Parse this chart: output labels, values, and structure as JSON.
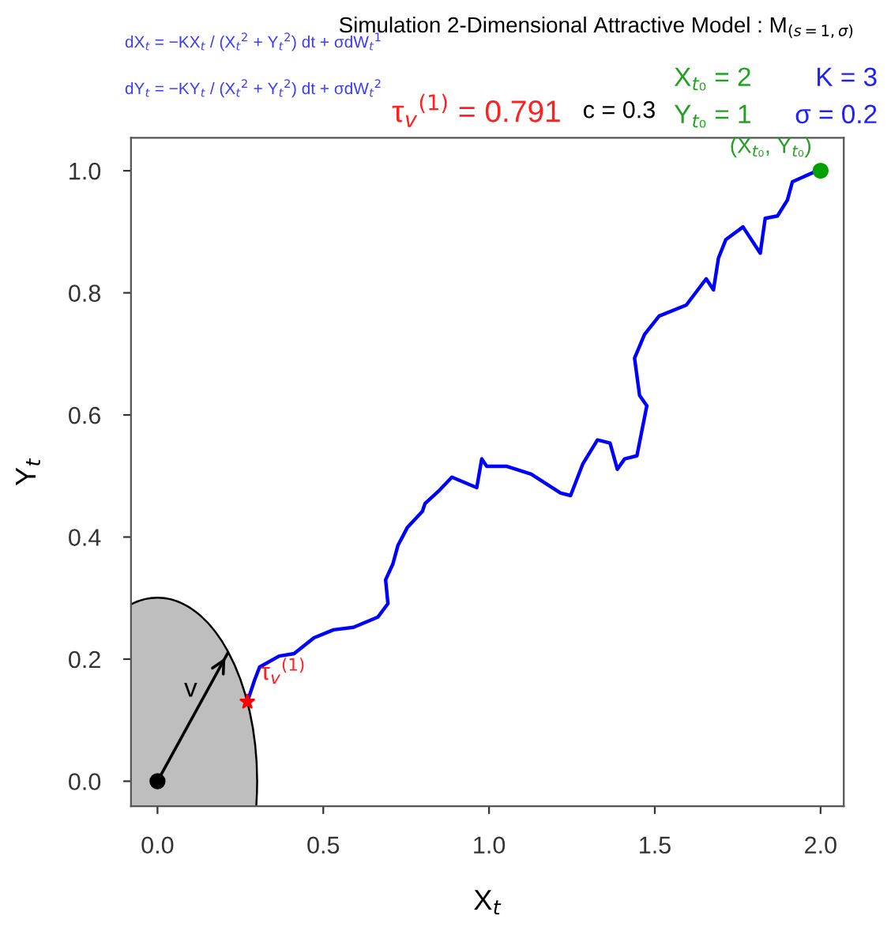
{
  "chart_data": {
    "type": "line",
    "title": "Simulation 2-Dimensional Attractive Model : M$_{(s=1,σ)}$",
    "xlabel": "X$_{t}$",
    "ylabel": "Y$_{t}$",
    "annotations": [
      "dX$_{t}$ = −KX$_{t}$ / (X$_{t}$$^{2}$ + Y$_{t}$$^{2}$) dt + σdW$_{t}$$^{1}$",
      "dY$_{t}$ = −KY$_{t}$ / (X$_{t}$$^{2}$ + Y$_{t}$$^{2}$) dt + σdW$_{t}$$^{2}$",
      "τ$_{v}$$^{(1)}$ = 0.791",
      "c = 0.3",
      "X$_{t₀}$ = 2",
      "Y$_{t₀}$ = 1",
      "K = 3",
      "σ = 0.2",
      {
        "text": "(X$_{t₀}$, Y$_{t₀}$)",
        "x": 2,
        "y": 1
      },
      "v",
      {
        "text": "τ$_{v}$$^{(1)}$",
        "x": 0.271,
        "y": 0.13
      }
    ],
    "series": [
      {
        "color": "#0000ff",
        "x": [
          1.99,
          1.915,
          1.9,
          1.87,
          1.833,
          1.818,
          1.766,
          1.714,
          1.692,
          1.677,
          1.655,
          1.595,
          1.513,
          1.469,
          1.439,
          1.454,
          1.476,
          1.446,
          1.409,
          1.387,
          1.365,
          1.327,
          1.283,
          1.246,
          1.216,
          1.127,
          1.052,
          0.993,
          0.978,
          0.963,
          0.888,
          0.851,
          0.807,
          0.799,
          0.754,
          0.725,
          0.71,
          0.688,
          0.695,
          0.665,
          0.591,
          0.531,
          0.472,
          0.412,
          0.367,
          0.308,
          0.293,
          0.271
        ],
        "values": [
          1.0,
          0.982,
          0.952,
          0.926,
          0.922,
          0.865,
          0.908,
          0.887,
          0.857,
          0.805,
          0.823,
          0.78,
          0.762,
          0.732,
          0.693,
          0.632,
          0.615,
          0.533,
          0.528,
          0.511,
          0.554,
          0.559,
          0.52,
          0.468,
          0.472,
          0.503,
          0.516,
          0.516,
          0.528,
          0.481,
          0.498,
          0.477,
          0.455,
          0.442,
          0.416,
          0.386,
          0.356,
          0.33,
          0.291,
          0.269,
          0.252,
          0.248,
          0.235,
          0.209,
          0.205,
          0.187,
          0.166,
          0.13
        ]
      },
      {
        "color": "#000000",
        "x": [
          0.0,
          0.211
        ],
        "values": [
          0.0,
          0.209
        ]
      },
      {
        "type": "scatter",
        "color": "#000000",
        "marker": "circle",
        "x": [
          0.0
        ],
        "values": [
          0.0
        ]
      },
      {
        "type": "scatter",
        "color": "#ff0000",
        "marker": "star",
        "x": [
          0.271
        ],
        "values": [
          0.13
        ]
      },
      {
        "type": "scatter",
        "color": "#00a000",
        "marker": "circle",
        "x": [
          2.0
        ],
        "values": [
          1.0
        ]
      }
    ],
    "xlim": [
      -0.08,
      2.07
    ],
    "ylim": [
      -0.041,
      1.054
    ],
    "xticks": [
      {
        "value": 0,
        "label": "0.0"
      },
      {
        "value": 0.5,
        "label": "0.5"
      },
      {
        "value": 1,
        "label": "1.0"
      },
      {
        "value": 1.5,
        "label": "1.5"
      },
      {
        "value": 2,
        "label": "2.0"
      }
    ],
    "yticks": [
      {
        "value": 0,
        "label": "0.0"
      },
      {
        "value": 0.2,
        "label": "0.2"
      },
      {
        "value": 0.4,
        "label": "0.4"
      },
      {
        "value": 0.6,
        "label": "0.6"
      },
      {
        "value": 0.8,
        "label": "0.8"
      },
      {
        "value": 1,
        "label": "1.0"
      }
    ],
    "grid": false,
    "legend": false
  }
}
